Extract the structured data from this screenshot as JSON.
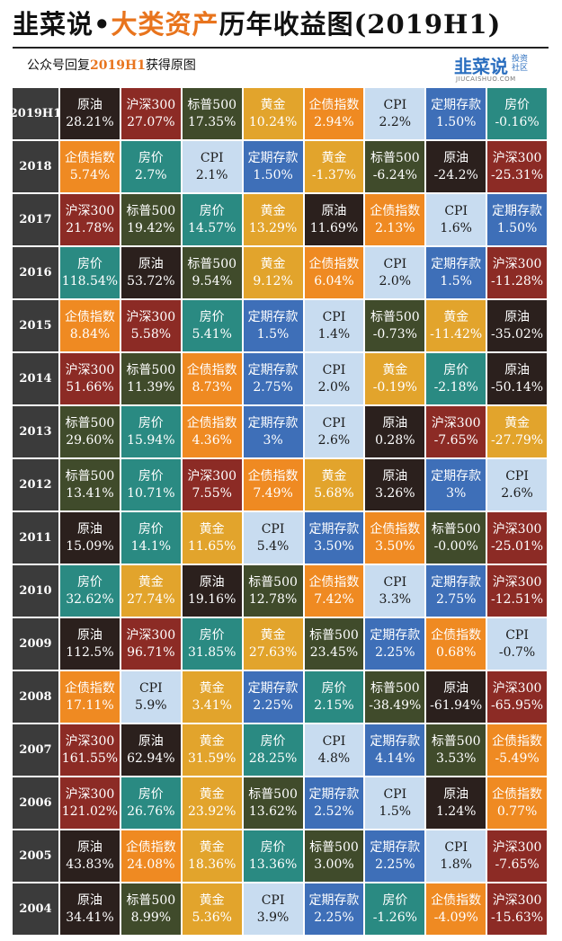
{
  "header": {
    "title": [
      "韭菜说•",
      "大类资产",
      "历年收益图(2019H1)"
    ],
    "subtitle": [
      "公众号回复",
      "2019H1",
      "获得原图"
    ],
    "logo": {
      "name": "韭菜说",
      "tag": "投资社区",
      "url": "JIUCAISHUO.COM"
    }
  },
  "colors": {
    "原油": [
      "#2b201d",
      "#ffffff"
    ],
    "沪深300": [
      "#8c2b25",
      "#ffffff"
    ],
    "标普500": [
      "#404b2b",
      "#ffffff"
    ],
    "黄金": [
      "#e2a42c",
      "#ffffff"
    ],
    "企债指数": [
      "#ef8a22",
      "#ffffff"
    ],
    "CPI": [
      "#c8dcf0",
      "#1a1a1a"
    ],
    "定期存款": [
      "#3e6fb8",
      "#ffffff"
    ],
    "房价": [
      "#2a8a82",
      "#ffffff"
    ]
  },
  "table": {
    "rows": [
      {
        "year": "2019H1",
        "cells": [
          [
            "原油",
            "28.21%"
          ],
          [
            "沪深300",
            "27.07%"
          ],
          [
            "标普500",
            "17.35%"
          ],
          [
            "黄金",
            "10.24%"
          ],
          [
            "企债指数",
            "2.94%"
          ],
          [
            "CPI",
            "2.2%"
          ],
          [
            "定期存款",
            "1.50%"
          ],
          [
            "房价",
            "-0.16%"
          ]
        ]
      },
      {
        "year": "2018",
        "cells": [
          [
            "企债指数",
            "5.74%"
          ],
          [
            "房价",
            "2.7%"
          ],
          [
            "CPI",
            "2.1%"
          ],
          [
            "定期存款",
            "1.50%"
          ],
          [
            "黄金",
            "-1.37%"
          ],
          [
            "标普500",
            "-6.24%"
          ],
          [
            "原油",
            "-24.2%"
          ],
          [
            "沪深300",
            "-25.31%"
          ]
        ]
      },
      {
        "year": "2017",
        "cells": [
          [
            "沪深300",
            "21.78%"
          ],
          [
            "标普500",
            "19.42%"
          ],
          [
            "房价",
            "14.57%"
          ],
          [
            "黄金",
            "13.29%"
          ],
          [
            "原油",
            "11.69%"
          ],
          [
            "企债指数",
            "2.13%"
          ],
          [
            "CPI",
            "1.6%"
          ],
          [
            "定期存款",
            "1.50%"
          ]
        ]
      },
      {
        "year": "2016",
        "cells": [
          [
            "房价",
            "118.54%"
          ],
          [
            "原油",
            "53.72%"
          ],
          [
            "标普500",
            "9.54%"
          ],
          [
            "黄金",
            "9.12%"
          ],
          [
            "企债指数",
            "6.04%"
          ],
          [
            "CPI",
            "2.0%"
          ],
          [
            "定期存款",
            "1.5%"
          ],
          [
            "沪深300",
            "-11.28%"
          ]
        ]
      },
      {
        "year": "2015",
        "cells": [
          [
            "企债指数",
            "8.84%"
          ],
          [
            "沪深300",
            "5.58%"
          ],
          [
            "房价",
            "5.41%"
          ],
          [
            "定期存款",
            "1.5%"
          ],
          [
            "CPI",
            "1.4%"
          ],
          [
            "标普500",
            "-0.73%"
          ],
          [
            "黄金",
            "-11.42%"
          ],
          [
            "原油",
            "-35.02%"
          ]
        ]
      },
      {
        "year": "2014",
        "cells": [
          [
            "沪深300",
            "51.66%"
          ],
          [
            "标普500",
            "11.39%"
          ],
          [
            "企债指数",
            "8.73%"
          ],
          [
            "定期存款",
            "2.75%"
          ],
          [
            "CPI",
            "2.0%"
          ],
          [
            "黄金",
            "-0.19%"
          ],
          [
            "房价",
            "-2.18%"
          ],
          [
            "原油",
            "-50.14%"
          ]
        ]
      },
      {
        "year": "2013",
        "cells": [
          [
            "标普500",
            "29.60%"
          ],
          [
            "房价",
            "15.94%"
          ],
          [
            "企债指数",
            "4.36%"
          ],
          [
            "定期存款",
            "3%"
          ],
          [
            "CPI",
            "2.6%"
          ],
          [
            "原油",
            "0.28%"
          ],
          [
            "沪深300",
            "-7.65%"
          ],
          [
            "黄金",
            "-27.79%"
          ]
        ]
      },
      {
        "year": "2012",
        "cells": [
          [
            "标普500",
            "13.41%"
          ],
          [
            "房价",
            "10.71%"
          ],
          [
            "沪深300",
            "7.55%"
          ],
          [
            "企债指数",
            "7.49%"
          ],
          [
            "黄金",
            "5.68%"
          ],
          [
            "原油",
            "3.26%"
          ],
          [
            "定期存款",
            "3%"
          ],
          [
            "CPI",
            "2.6%"
          ]
        ]
      },
      {
        "year": "2011",
        "cells": [
          [
            "原油",
            "15.09%"
          ],
          [
            "房价",
            "14.1%"
          ],
          [
            "黄金",
            "11.65%"
          ],
          [
            "CPI",
            "5.4%"
          ],
          [
            "定期存款",
            "3.50%"
          ],
          [
            "企债指数",
            "3.50%"
          ],
          [
            "标普500",
            "-0.00%"
          ],
          [
            "沪深300",
            "-25.01%"
          ]
        ]
      },
      {
        "year": "2010",
        "cells": [
          [
            "房价",
            "32.62%"
          ],
          [
            "黄金",
            "27.74%"
          ],
          [
            "原油",
            "19.16%"
          ],
          [
            "标普500",
            "12.78%"
          ],
          [
            "企债指数",
            "7.42%"
          ],
          [
            "CPI",
            "3.3%"
          ],
          [
            "定期存款",
            "2.75%"
          ],
          [
            "沪深300",
            "-12.51%"
          ]
        ]
      },
      {
        "year": "2009",
        "cells": [
          [
            "原油",
            "112.5%"
          ],
          [
            "沪深300",
            "96.71%"
          ],
          [
            "房价",
            "31.85%"
          ],
          [
            "黄金",
            "27.63%"
          ],
          [
            "标普500",
            "23.45%"
          ],
          [
            "定期存款",
            "2.25%"
          ],
          [
            "企债指数",
            "0.68%"
          ],
          [
            "CPI",
            "-0.7%"
          ]
        ]
      },
      {
        "year": "2008",
        "cells": [
          [
            "企债指数",
            "17.11%"
          ],
          [
            "CPI",
            "5.9%"
          ],
          [
            "黄金",
            "3.41%"
          ],
          [
            "定期存款",
            "2.25%"
          ],
          [
            "房价",
            "2.15%"
          ],
          [
            "标普500",
            "-38.49%"
          ],
          [
            "原油",
            "-61.94%"
          ],
          [
            "沪深300",
            "-65.95%"
          ]
        ]
      },
      {
        "year": "2007",
        "cells": [
          [
            "沪深300",
            "161.55%"
          ],
          [
            "原油",
            "62.94%"
          ],
          [
            "黄金",
            "31.59%"
          ],
          [
            "房价",
            "28.25%"
          ],
          [
            "CPI",
            "4.8%"
          ],
          [
            "定期存款",
            "4.14%"
          ],
          [
            "标普500",
            "3.53%"
          ],
          [
            "企债指数",
            "-5.49%"
          ]
        ]
      },
      {
        "year": "2006",
        "cells": [
          [
            "沪深300",
            "121.02%"
          ],
          [
            "房价",
            "26.76%"
          ],
          [
            "黄金",
            "23.92%"
          ],
          [
            "标普500",
            "13.62%"
          ],
          [
            "定期存款",
            "2.52%"
          ],
          [
            "CPI",
            "1.5%"
          ],
          [
            "原油",
            "1.24%"
          ],
          [
            "企债指数",
            "0.77%"
          ]
        ]
      },
      {
        "year": "2005",
        "cells": [
          [
            "原油",
            "43.83%"
          ],
          [
            "企债指数",
            "24.08%"
          ],
          [
            "黄金",
            "18.36%"
          ],
          [
            "房价",
            "13.36%"
          ],
          [
            "标普500",
            "3.00%"
          ],
          [
            "定期存款",
            "2.25%"
          ],
          [
            "CPI",
            "1.8%"
          ],
          [
            "沪深300",
            "-7.65%"
          ]
        ]
      },
      {
        "year": "2004",
        "cells": [
          [
            "原油",
            "34.41%"
          ],
          [
            "标普500",
            "8.99%"
          ],
          [
            "黄金",
            "5.36%"
          ],
          [
            "CPI",
            "3.9%"
          ],
          [
            "定期存款",
            "2.25%"
          ],
          [
            "房价",
            "-1.26%"
          ],
          [
            "企债指数",
            "-4.09%"
          ],
          [
            "沪深300",
            "-15.63%"
          ]
        ]
      }
    ]
  }
}
